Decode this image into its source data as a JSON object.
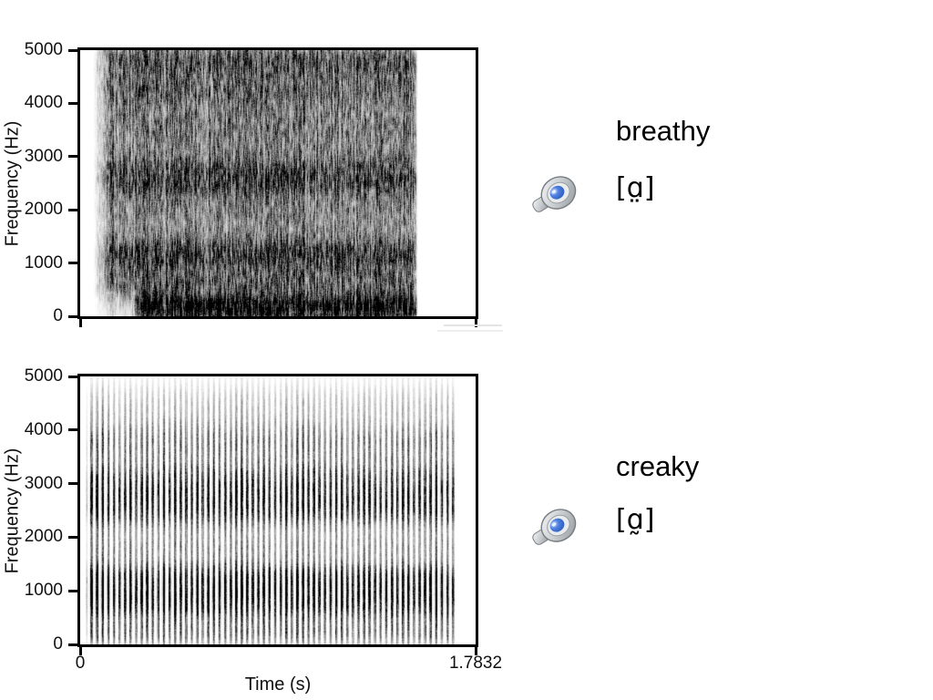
{
  "panels": [
    {
      "name": "breathy",
      "label": "breathy",
      "ipa": "[ɑ̤]",
      "icon": "speaker-icon"
    },
    {
      "name": "creaky",
      "label": "creaky",
      "ipa": "[ɑ̰]",
      "icon": "speaker-icon"
    }
  ],
  "colors": {
    "axis": "#000000",
    "text": "#000000",
    "speaker_blue": "#3f6fd1",
    "speaker_gray": "#c8cccf"
  },
  "chart_data": [
    {
      "type": "heatmap",
      "subtype": "spectrogram",
      "phonation": "breathy",
      "title": "",
      "ylabel": "Frequency (Hz)",
      "xlabel": "",
      "ylim": [
        0,
        5000
      ],
      "xlim": [
        0,
        1.7832
      ],
      "yticks": [
        0,
        1000,
        2000,
        3000,
        4000,
        5000
      ],
      "ytick_labels": [
        "0",
        "1000",
        "2000",
        "3000",
        "4000",
        "5000"
      ],
      "xticks": [
        0,
        1.7832
      ],
      "xtick_labels": [
        "",
        ""
      ],
      "grid": false,
      "legend": false,
      "time_range_s": [
        0.06,
        1.52
      ],
      "formant_bands_hz": [
        150,
        1150,
        2600,
        3500,
        4800
      ],
      "render": {
        "seed": 7,
        "floor": 0.17,
        "t0": 0.03,
        "t1": 0.855,
        "ramp": 0.05,
        "rampEnd": 0.012,
        "bands": [
          {
            "f": 150,
            "s": 170,
            "a": 1.0,
            "start": 0.16
          },
          {
            "f": 600,
            "s": 200,
            "a": 0.4
          },
          {
            "f": 1150,
            "s": 260,
            "a": 0.6
          },
          {
            "f": 1900,
            "s": 300,
            "a": 0.3
          },
          {
            "f": 2600,
            "s": 280,
            "a": 0.6
          },
          {
            "f": 3500,
            "s": 400,
            "a": 0.38
          },
          {
            "f": 4250,
            "s": 250,
            "a": 0.34
          },
          {
            "f": 4800,
            "s": 260,
            "a": 0.48
          }
        ]
      }
    },
    {
      "type": "heatmap",
      "subtype": "spectrogram",
      "phonation": "creaky",
      "title": "",
      "ylabel": "Frequency (Hz)",
      "xlabel": "Time (s)",
      "ylim": [
        0,
        5000
      ],
      "xlim": [
        0,
        1.7832
      ],
      "yticks": [
        0,
        1000,
        2000,
        3000,
        4000,
        5000
      ],
      "ytick_labels": [
        "0",
        "1000",
        "2000",
        "3000",
        "4000",
        "5000"
      ],
      "xticks": [
        0,
        1.7832
      ],
      "xtick_labels": [
        "0",
        "1.7832"
      ],
      "grid": false,
      "legend": false,
      "time_range_s": [
        0.02,
        1.7
      ],
      "formant_bands_hz": [
        250,
        950,
        2500,
        3000,
        3800
      ],
      "render": {
        "seed": 13,
        "floor": 0.05,
        "t0": 0.012,
        "t1": 0.955,
        "ramp": 0.015,
        "rampEnd": 0.01,
        "period": 6.1,
        "onset": 0.06,
        "onsetBoost": 1.35,
        "bands": [
          {
            "f": 200,
            "s": 180,
            "a": 0.42
          },
          {
            "f": 800,
            "s": 260,
            "a": 0.92
          },
          {
            "f": 1250,
            "s": 200,
            "a": 0.7
          },
          {
            "f": 1800,
            "s": 220,
            "a": 0.33
          },
          {
            "f": 2500,
            "s": 260,
            "a": 0.62
          },
          {
            "f": 3000,
            "s": 300,
            "a": 0.66
          },
          {
            "f": 3800,
            "s": 300,
            "a": 0.42
          },
          {
            "f": 4500,
            "s": 250,
            "a": 0.16
          }
        ]
      }
    }
  ]
}
